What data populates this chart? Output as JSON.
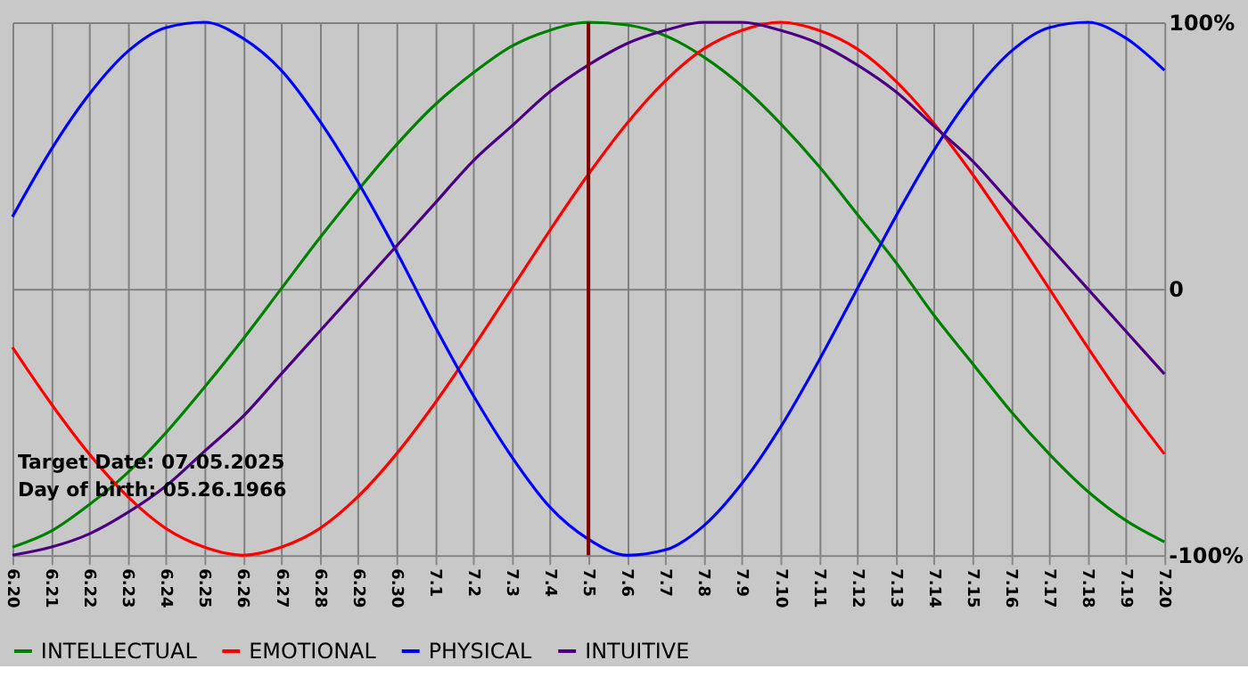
{
  "chart_data": {
    "type": "line",
    "categories": [
      "6.20",
      "6.21",
      "6.22",
      "6.23",
      "6.24",
      "6.25",
      "6.26",
      "6.27",
      "6.28",
      "6.29",
      "6.30",
      "7.1",
      "7.2",
      "7.3",
      "7.4",
      "7.5",
      "7.6",
      "7.7",
      "7.8",
      "7.9",
      "7.10",
      "7.11",
      "7.12",
      "7.13",
      "7.14",
      "7.15",
      "7.16",
      "7.17",
      "7.18",
      "7.19",
      "7.20"
    ],
    "series": [
      {
        "name": "INTELLECTUAL",
        "color": "#008000",
        "values": [
          -97,
          -91,
          -81,
          -69,
          -54,
          -37,
          -19,
          0,
          19,
          37,
          54,
          69,
          81,
          91,
          97,
          100,
          99,
          95,
          87,
          76,
          62,
          46,
          28,
          10,
          -10,
          -28,
          -46,
          -62,
          -76,
          -87,
          -95
        ]
      },
      {
        "name": "EMOTIONAL",
        "color": "#ff0000",
        "values": [
          -22,
          -43,
          -62,
          -78,
          -90,
          -97,
          -100,
          -97,
          -90,
          -78,
          -62,
          -43,
          -22,
          0,
          22,
          43,
          62,
          78,
          90,
          97,
          100,
          97,
          90,
          78,
          62,
          43,
          22,
          0,
          -22,
          -43,
          -62
        ]
      },
      {
        "name": "PHYSICAL",
        "color": "#0000ff",
        "values": [
          27,
          52,
          73,
          89,
          98,
          100,
          94,
          82,
          63,
          40,
          14,
          -14,
          -40,
          -63,
          -82,
          -94,
          -100,
          -98,
          -89,
          -73,
          -52,
          -27,
          0,
          27,
          52,
          73,
          89,
          98,
          100,
          94,
          82
        ]
      },
      {
        "name": "INTUITIVE",
        "color": "#4b0082",
        "values": [
          -100,
          -97,
          -92,
          -84,
          -74,
          -61,
          -48,
          -32,
          -16,
          0,
          16,
          32,
          48,
          61,
          74,
          84,
          92,
          97,
          100,
          100,
          97,
          92,
          84,
          74,
          61,
          48,
          32,
          16,
          0,
          -16,
          -32
        ]
      }
    ],
    "ylim": [
      -100,
      100
    ],
    "yticks": [
      {
        "value": -100,
        "label": "-100%"
      },
      0,
      {
        "value": 100,
        "label": "100%"
      }
    ],
    "ref_lines": [
      {
        "axis": "x",
        "value": "7.5",
        "color": "#800000"
      }
    ],
    "annotations": [
      "Target Date: 07.05.2025",
      "Day of birth: 05.26.1966"
    ],
    "grid": true,
    "legend": "bottom left",
    "marker": "none",
    "line_style": "solid"
  }
}
